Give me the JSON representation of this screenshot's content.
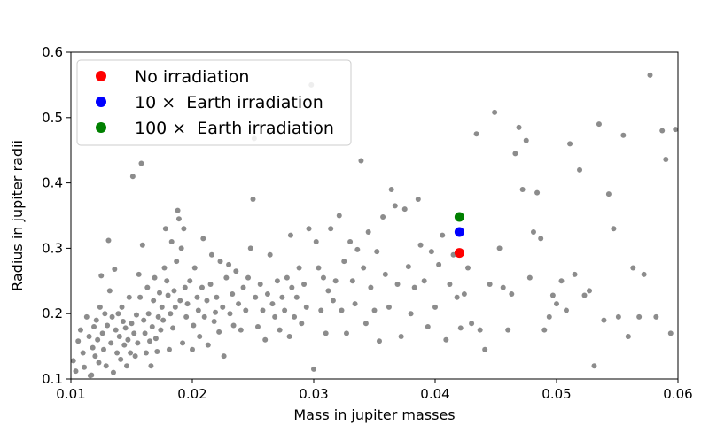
{
  "chart_data": {
    "type": "scatter",
    "title": "",
    "xlabel": "Mass in jupiter masses",
    "ylabel": "Radius in jupiter radii",
    "xlim": [
      0.01,
      0.06
    ],
    "ylim": [
      0.1,
      0.6
    ],
    "xticks": [
      "0.01",
      "0.02",
      "0.03",
      "0.04",
      "0.05",
      "0.06"
    ],
    "yticks": [
      "0.1",
      "0.2",
      "0.3",
      "0.4",
      "0.5",
      "0.6"
    ],
    "xtick_values": [
      0.01,
      0.02,
      0.03,
      0.04,
      0.05,
      0.06
    ],
    "ytick_values": [
      0.1,
      0.2,
      0.3,
      0.4,
      0.5,
      0.6
    ],
    "legend_position": "top-left",
    "grid": false,
    "background_series": {
      "color": "#8c8c8c",
      "points": [
        [
          0.0102,
          0.128
        ],
        [
          0.0104,
          0.112
        ],
        [
          0.0106,
          0.158
        ],
        [
          0.0108,
          0.175
        ],
        [
          0.011,
          0.14
        ],
        [
          0.0111,
          0.118
        ],
        [
          0.0113,
          0.195
        ],
        [
          0.0115,
          0.165
        ],
        [
          0.0116,
          0.105
        ],
        [
          0.0117,
          0.106
        ],
        [
          0.0118,
          0.148
        ],
        [
          0.0119,
          0.18
        ],
        [
          0.012,
          0.135
        ],
        [
          0.0121,
          0.19
        ],
        [
          0.0122,
          0.16
        ],
        [
          0.0123,
          0.125
        ],
        [
          0.0124,
          0.21
        ],
        [
          0.0125,
          0.258
        ],
        [
          0.0126,
          0.17
        ],
        [
          0.0127,
          0.145
        ],
        [
          0.0128,
          0.2
        ],
        [
          0.0129,
          0.12
        ],
        [
          0.013,
          0.182
        ],
        [
          0.0131,
          0.312
        ],
        [
          0.0132,
          0.235
        ],
        [
          0.0133,
          0.155
        ],
        [
          0.0134,
          0.195
        ],
        [
          0.0135,
          0.11
        ],
        [
          0.0136,
          0.268
        ],
        [
          0.0137,
          0.175
        ],
        [
          0.0138,
          0.14
        ],
        [
          0.0139,
          0.2
        ],
        [
          0.014,
          0.165
        ],
        [
          0.0141,
          0.13
        ],
        [
          0.0142,
          0.21
        ],
        [
          0.0143,
          0.188
        ],
        [
          0.0144,
          0.152
        ],
        [
          0.0145,
          0.178
        ],
        [
          0.0146,
          0.12
        ],
        [
          0.0147,
          0.16
        ],
        [
          0.0148,
          0.225
        ],
        [
          0.0149,
          0.14
        ],
        [
          0.015,
          0.185
        ],
        [
          0.0151,
          0.41
        ],
        [
          0.0152,
          0.17
        ],
        [
          0.0153,
          0.135
        ],
        [
          0.0154,
          0.198
        ],
        [
          0.0155,
          0.155
        ],
        [
          0.0156,
          0.26
        ],
        [
          0.0157,
          0.225
        ],
        [
          0.0158,
          0.43
        ],
        [
          0.0159,
          0.305
        ],
        [
          0.016,
          0.19
        ],
        [
          0.0161,
          0.17
        ],
        [
          0.0162,
          0.14
        ],
        [
          0.0163,
          0.24
        ],
        [
          0.0164,
          0.2
        ],
        [
          0.0165,
          0.158
        ],
        [
          0.0166,
          0.12
        ],
        [
          0.0167,
          0.18
        ],
        [
          0.0168,
          0.22
        ],
        [
          0.0169,
          0.255
        ],
        [
          0.017,
          0.162
        ],
        [
          0.0171,
          0.142
        ],
        [
          0.0172,
          0.195
        ],
        [
          0.0173,
          0.232
        ],
        [
          0.0174,
          0.175
        ],
        [
          0.0175,
          0.21
        ],
        [
          0.0176,
          0.19
        ],
        [
          0.0177,
          0.27
        ],
        [
          0.0178,
          0.33
        ],
        [
          0.0179,
          0.25
        ],
        [
          0.018,
          0.228
        ],
        [
          0.0181,
          0.145
        ],
        [
          0.0182,
          0.2
        ],
        [
          0.0183,
          0.31
        ],
        [
          0.0184,
          0.178
        ],
        [
          0.0185,
          0.235
        ],
        [
          0.0186,
          0.21
        ],
        [
          0.0187,
          0.28
        ],
        [
          0.0188,
          0.358
        ],
        [
          0.0189,
          0.345
        ],
        [
          0.019,
          0.22
        ],
        [
          0.0191,
          0.3
        ],
        [
          0.0192,
          0.155
        ],
        [
          0.0193,
          0.33
        ],
        [
          0.0194,
          0.24
        ],
        [
          0.0195,
          0.195
        ],
        [
          0.0196,
          0.215
        ],
        [
          0.0198,
          0.25
        ],
        [
          0.02,
          0.145
        ],
        [
          0.0201,
          0.182
        ],
        [
          0.0202,
          0.27
        ],
        [
          0.0204,
          0.225
        ],
        [
          0.0205,
          0.205
        ],
        [
          0.0206,
          0.165
        ],
        [
          0.0208,
          0.24
        ],
        [
          0.0209,
          0.315
        ],
        [
          0.021,
          0.195
        ],
        [
          0.0212,
          0.22
        ],
        [
          0.0213,
          0.152
        ],
        [
          0.0215,
          0.245
        ],
        [
          0.0216,
          0.29
        ],
        [
          0.0218,
          0.188
        ],
        [
          0.0219,
          0.202
        ],
        [
          0.022,
          0.225
        ],
        [
          0.0222,
          0.172
        ],
        [
          0.0223,
          0.28
        ],
        [
          0.0225,
          0.21
        ],
        [
          0.0226,
          0.135
        ],
        [
          0.0228,
          0.255
        ],
        [
          0.023,
          0.275
        ],
        [
          0.0231,
          0.2
        ],
        [
          0.0233,
          0.23
        ],
        [
          0.0234,
          0.182
        ],
        [
          0.0236,
          0.265
        ],
        [
          0.0238,
          0.215
        ],
        [
          0.024,
          0.175
        ],
        [
          0.0242,
          0.24
        ],
        [
          0.0244,
          0.205
        ],
        [
          0.0246,
          0.255
        ],
        [
          0.0248,
          0.3
        ],
        [
          0.025,
          0.375
        ],
        [
          0.0251,
          0.468
        ],
        [
          0.0252,
          0.225
        ],
        [
          0.0254,
          0.18
        ],
        [
          0.0256,
          0.245
        ],
        [
          0.0258,
          0.205
        ],
        [
          0.026,
          0.16
        ],
        [
          0.0262,
          0.23
        ],
        [
          0.0264,
          0.29
        ],
        [
          0.0266,
          0.215
        ],
        [
          0.0268,
          0.195
        ],
        [
          0.027,
          0.25
        ],
        [
          0.0272,
          0.175
        ],
        [
          0.0274,
          0.225
        ],
        [
          0.0276,
          0.205
        ],
        [
          0.0278,
          0.255
        ],
        [
          0.028,
          0.165
        ],
        [
          0.0281,
          0.32
        ],
        [
          0.0282,
          0.24
        ],
        [
          0.0284,
          0.195
        ],
        [
          0.0286,
          0.225
        ],
        [
          0.0288,
          0.27
        ],
        [
          0.029,
          0.185
        ],
        [
          0.0292,
          0.245
        ],
        [
          0.0294,
          0.21
        ],
        [
          0.0296,
          0.33
        ],
        [
          0.0298,
          0.55
        ],
        [
          0.03,
          0.115
        ],
        [
          0.0302,
          0.31
        ],
        [
          0.0304,
          0.27
        ],
        [
          0.0306,
          0.205
        ],
        [
          0.0308,
          0.255
        ],
        [
          0.031,
          0.17
        ],
        [
          0.0312,
          0.235
        ],
        [
          0.0314,
          0.33
        ],
        [
          0.0316,
          0.22
        ],
        [
          0.0318,
          0.25
        ],
        [
          0.0321,
          0.35
        ],
        [
          0.0323,
          0.205
        ],
        [
          0.0325,
          0.28
        ],
        [
          0.0327,
          0.17
        ],
        [
          0.033,
          0.31
        ],
        [
          0.0332,
          0.25
        ],
        [
          0.0334,
          0.215
        ],
        [
          0.0336,
          0.298
        ],
        [
          0.0339,
          0.434
        ],
        [
          0.0341,
          0.27
        ],
        [
          0.0343,
          0.185
        ],
        [
          0.0345,
          0.325
        ],
        [
          0.0347,
          0.24
        ],
        [
          0.035,
          0.205
        ],
        [
          0.0352,
          0.295
        ],
        [
          0.0354,
          0.158
        ],
        [
          0.0357,
          0.348
        ],
        [
          0.0359,
          0.26
        ],
        [
          0.0362,
          0.21
        ],
        [
          0.0364,
          0.39
        ],
        [
          0.0367,
          0.365
        ],
        [
          0.0369,
          0.245
        ],
        [
          0.0372,
          0.165
        ],
        [
          0.0375,
          0.36
        ],
        [
          0.0378,
          0.272
        ],
        [
          0.038,
          0.2
        ],
        [
          0.0383,
          0.24
        ],
        [
          0.0386,
          0.375
        ],
        [
          0.0388,
          0.305
        ],
        [
          0.0391,
          0.25
        ],
        [
          0.0394,
          0.18
        ],
        [
          0.0397,
          0.295
        ],
        [
          0.04,
          0.21
        ],
        [
          0.0403,
          0.275
        ],
        [
          0.0406,
          0.32
        ],
        [
          0.0409,
          0.16
        ],
        [
          0.0412,
          0.245
        ],
        [
          0.0415,
          0.29
        ],
        [
          0.0418,
          0.225
        ],
        [
          0.0421,
          0.178
        ],
        [
          0.0424,
          0.23
        ],
        [
          0.0427,
          0.27
        ],
        [
          0.043,
          0.185
        ],
        [
          0.0434,
          0.475
        ],
        [
          0.0437,
          0.175
        ],
        [
          0.0441,
          0.145
        ],
        [
          0.0445,
          0.245
        ],
        [
          0.0449,
          0.508
        ],
        [
          0.0453,
          0.3
        ],
        [
          0.0456,
          0.24
        ],
        [
          0.046,
          0.175
        ],
        [
          0.0463,
          0.23
        ],
        [
          0.0466,
          0.445
        ],
        [
          0.0469,
          0.485
        ],
        [
          0.0472,
          0.39
        ],
        [
          0.0475,
          0.465
        ],
        [
          0.0478,
          0.255
        ],
        [
          0.0481,
          0.325
        ],
        [
          0.0484,
          0.385
        ],
        [
          0.0487,
          0.315
        ],
        [
          0.049,
          0.175
        ],
        [
          0.0494,
          0.195
        ],
        [
          0.0497,
          0.228
        ],
        [
          0.05,
          0.215
        ],
        [
          0.0504,
          0.25
        ],
        [
          0.0508,
          0.205
        ],
        [
          0.0511,
          0.46
        ],
        [
          0.0515,
          0.26
        ],
        [
          0.0519,
          0.42
        ],
        [
          0.0523,
          0.228
        ],
        [
          0.0527,
          0.235
        ],
        [
          0.0531,
          0.12
        ],
        [
          0.0535,
          0.49
        ],
        [
          0.0539,
          0.19
        ],
        [
          0.0543,
          0.383
        ],
        [
          0.0547,
          0.33
        ],
        [
          0.0551,
          0.195
        ],
        [
          0.0555,
          0.473
        ],
        [
          0.0559,
          0.165
        ],
        [
          0.0563,
          0.27
        ],
        [
          0.0568,
          0.195
        ],
        [
          0.0572,
          0.26
        ],
        [
          0.0577,
          0.565
        ],
        [
          0.0582,
          0.195
        ],
        [
          0.0587,
          0.48
        ],
        [
          0.059,
          0.436
        ],
        [
          0.0594,
          0.17
        ],
        [
          0.0598,
          0.482
        ]
      ]
    },
    "series": [
      {
        "name": "No irradiation",
        "color": "#ff0000",
        "x": [
          0.042
        ],
        "y": [
          0.293
        ]
      },
      {
        "name": "10 ×  Earth irradiation",
        "color": "#0000ff",
        "x": [
          0.042
        ],
        "y": [
          0.325
        ]
      },
      {
        "name": "100 ×  Earth irradiation",
        "color": "#008000",
        "x": [
          0.042
        ],
        "y": [
          0.348
        ]
      }
    ]
  }
}
